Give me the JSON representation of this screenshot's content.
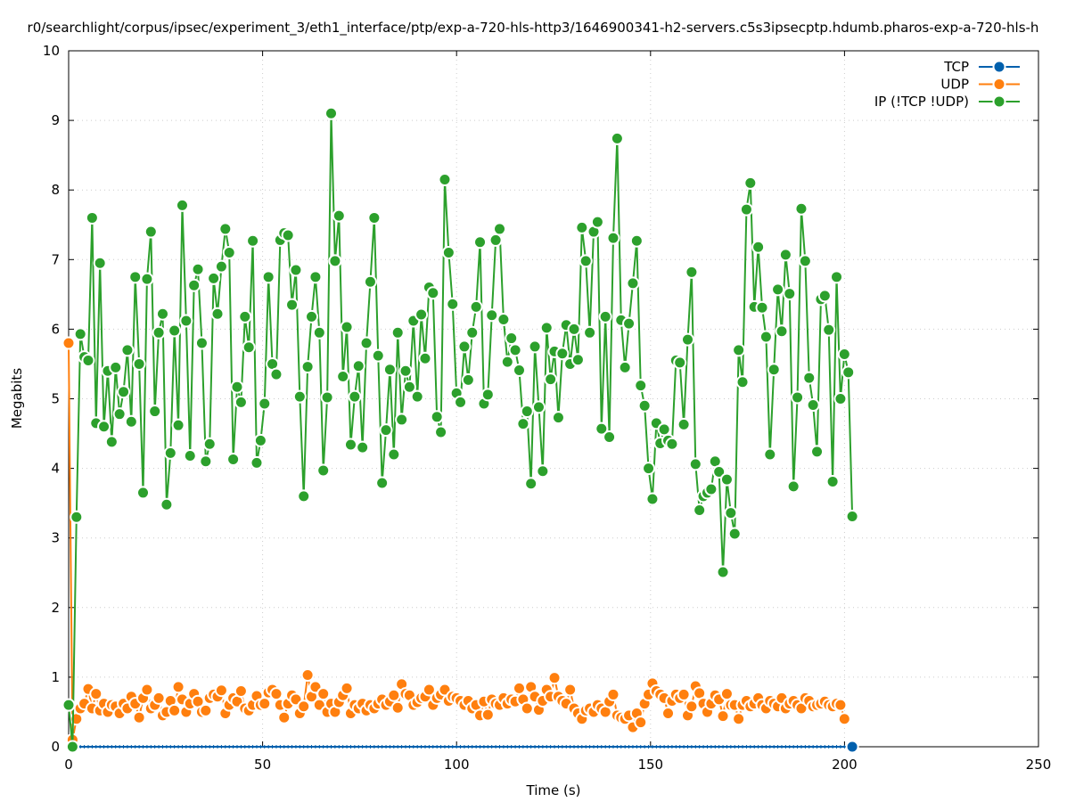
{
  "chart_data": {
    "type": "line",
    "title": "r0/searchlight/corpus/ipsec/experiment_3/eth1_interface/ptp/exp-a-720-hls-http3/1646900341-h2-servers.c5s3ipsecptp.hdumb.pharos-exp-a-720-hls-h",
    "xlabel": "Time (s)",
    "ylabel": "Megabits",
    "xlim": [
      0,
      250
    ],
    "ylim": [
      0,
      10
    ],
    "xticks": [
      0,
      50,
      100,
      150,
      200,
      250
    ],
    "yticks": [
      0,
      1,
      2,
      3,
      4,
      5,
      6,
      7,
      8,
      9,
      10
    ],
    "grid": true,
    "legend_position": "top-right",
    "x_start": 0,
    "x_step": 1.01,
    "series": [
      {
        "name": "TCP",
        "color": "#0060ad",
        "values": "zeros",
        "last_point_only": true
      },
      {
        "name": "UDP",
        "color": "#ff7f0e",
        "values": [
          5.8,
          0.1,
          0.4,
          0.55,
          0.62,
          0.83,
          0.55,
          0.76,
          0.52,
          0.62,
          0.5,
          0.6,
          0.58,
          0.48,
          0.62,
          0.55,
          0.72,
          0.62,
          0.42,
          0.7,
          0.82,
          0.55,
          0.6,
          0.7,
          0.45,
          0.5,
          0.66,
          0.52,
          0.86,
          0.68,
          0.5,
          0.62,
          0.76,
          0.65,
          0.5,
          0.52,
          0.7,
          0.75,
          0.72,
          0.81,
          0.48,
          0.6,
          0.7,
          0.65,
          0.8,
          0.55,
          0.52,
          0.6,
          0.73,
          0.6,
          0.62,
          0.78,
          0.82,
          0.76,
          0.6,
          0.42,
          0.62,
          0.74,
          0.68,
          0.48,
          0.58,
          1.03,
          0.72,
          0.86,
          0.6,
          0.76,
          0.5,
          0.62,
          0.5,
          0.64,
          0.74,
          0.84,
          0.48,
          0.6,
          0.55,
          0.62,
          0.52,
          0.6,
          0.55,
          0.62,
          0.68,
          0.6,
          0.65,
          0.74,
          0.56,
          0.9,
          0.76,
          0.74,
          0.6,
          0.64,
          0.7,
          0.72,
          0.82,
          0.6,
          0.7,
          0.75,
          0.82,
          0.66,
          0.72,
          0.7,
          0.66,
          0.6,
          0.66,
          0.55,
          0.6,
          0.45,
          0.65,
          0.46,
          0.68,
          0.62,
          0.6,
          0.7,
          0.62,
          0.68,
          0.65,
          0.84,
          0.68,
          0.55,
          0.86,
          0.72,
          0.53,
          0.66,
          0.82,
          0.72,
          0.99,
          0.72,
          0.66,
          0.62,
          0.82,
          0.55,
          0.48,
          0.4,
          0.52,
          0.55,
          0.5,
          0.6,
          0.55,
          0.5,
          0.65,
          0.75,
          0.45,
          0.42,
          0.4,
          0.45,
          0.28,
          0.48,
          0.35,
          0.62,
          0.75,
          0.91,
          0.8,
          0.75,
          0.7,
          0.48,
          0.66,
          0.75,
          0.7,
          0.75,
          0.45,
          0.58,
          0.87,
          0.77,
          0.62,
          0.5,
          0.62,
          0.74,
          0.68,
          0.44,
          0.76,
          0.6,
          0.6,
          0.4,
          0.6,
          0.66,
          0.58,
          0.62,
          0.7,
          0.6,
          0.55,
          0.66,
          0.62,
          0.58,
          0.7,
          0.55,
          0.62,
          0.66,
          0.6,
          0.55,
          0.7,
          0.66,
          0.58,
          0.6,
          0.62,
          0.65,
          0.6,
          0.58,
          0.62,
          0.6,
          0.4
        ]
      },
      {
        "name": "IP (!TCP  !UDP)",
        "color": "#2ca02c",
        "values": [
          0.6,
          0.0,
          3.3,
          5.93,
          5.6,
          5.55,
          7.6,
          4.65,
          6.95,
          4.6,
          5.4,
          4.38,
          5.45,
          4.78,
          5.1,
          5.7,
          4.67,
          6.75,
          5.5,
          3.65,
          6.72,
          7.4,
          4.82,
          5.95,
          6.22,
          3.48,
          4.22,
          5.98,
          4.62,
          7.78,
          6.12,
          4.18,
          6.63,
          6.86,
          5.8,
          4.1,
          4.35,
          6.73,
          6.22,
          6.9,
          7.44,
          7.1,
          4.13,
          5.17,
          4.95,
          6.18,
          5.74,
          7.27,
          4.08,
          4.4,
          4.93,
          6.75,
          5.5,
          5.35,
          7.28,
          7.38,
          7.35,
          6.35,
          6.85,
          5.03,
          3.6,
          5.46,
          6.18,
          6.75,
          5.95,
          3.97,
          5.02,
          9.1,
          6.98,
          7.63,
          5.32,
          6.03,
          4.34,
          5.03,
          5.47,
          4.3,
          5.8,
          6.68,
          7.6,
          5.62,
          3.79,
          4.55,
          5.42,
          4.2,
          5.95,
          4.7,
          5.4,
          5.17,
          6.12,
          5.03,
          6.21,
          5.58,
          6.6,
          6.52,
          4.74,
          4.52,
          8.15,
          7.1,
          6.36,
          5.08,
          4.95,
          5.75,
          5.27,
          5.95,
          6.32,
          7.25,
          4.93,
          5.06,
          6.2,
          7.28,
          7.44,
          6.14,
          5.53,
          5.87,
          5.7,
          5.41,
          4.64,
          4.82,
          3.78,
          5.75,
          4.88,
          3.96,
          6.02,
          5.28,
          5.68,
          4.73,
          5.65,
          6.06,
          5.5,
          6.0,
          5.56,
          7.46,
          6.98,
          5.95,
          7.4,
          7.54,
          4.57,
          6.18,
          4.45,
          7.31,
          8.74,
          6.13,
          5.45,
          6.08,
          6.66,
          7.27,
          5.19,
          4.9,
          4.0,
          3.56,
          4.65,
          4.36,
          4.56,
          4.4,
          4.35,
          5.55,
          5.52,
          4.63,
          5.85,
          6.82,
          4.06,
          3.4,
          3.6,
          3.65,
          3.7,
          4.1,
          3.95,
          2.51,
          3.84,
          3.36,
          3.06,
          5.7,
          5.24,
          7.72,
          8.1,
          6.32,
          7.18,
          6.31,
          5.89,
          4.2,
          5.42,
          6.57,
          5.97,
          7.07,
          6.51,
          3.74,
          5.02,
          7.73,
          6.98,
          5.3,
          4.91,
          4.24,
          6.43,
          6.48,
          5.99,
          3.81,
          6.75,
          5.0,
          5.64,
          5.38,
          3.31
        ]
      }
    ]
  }
}
